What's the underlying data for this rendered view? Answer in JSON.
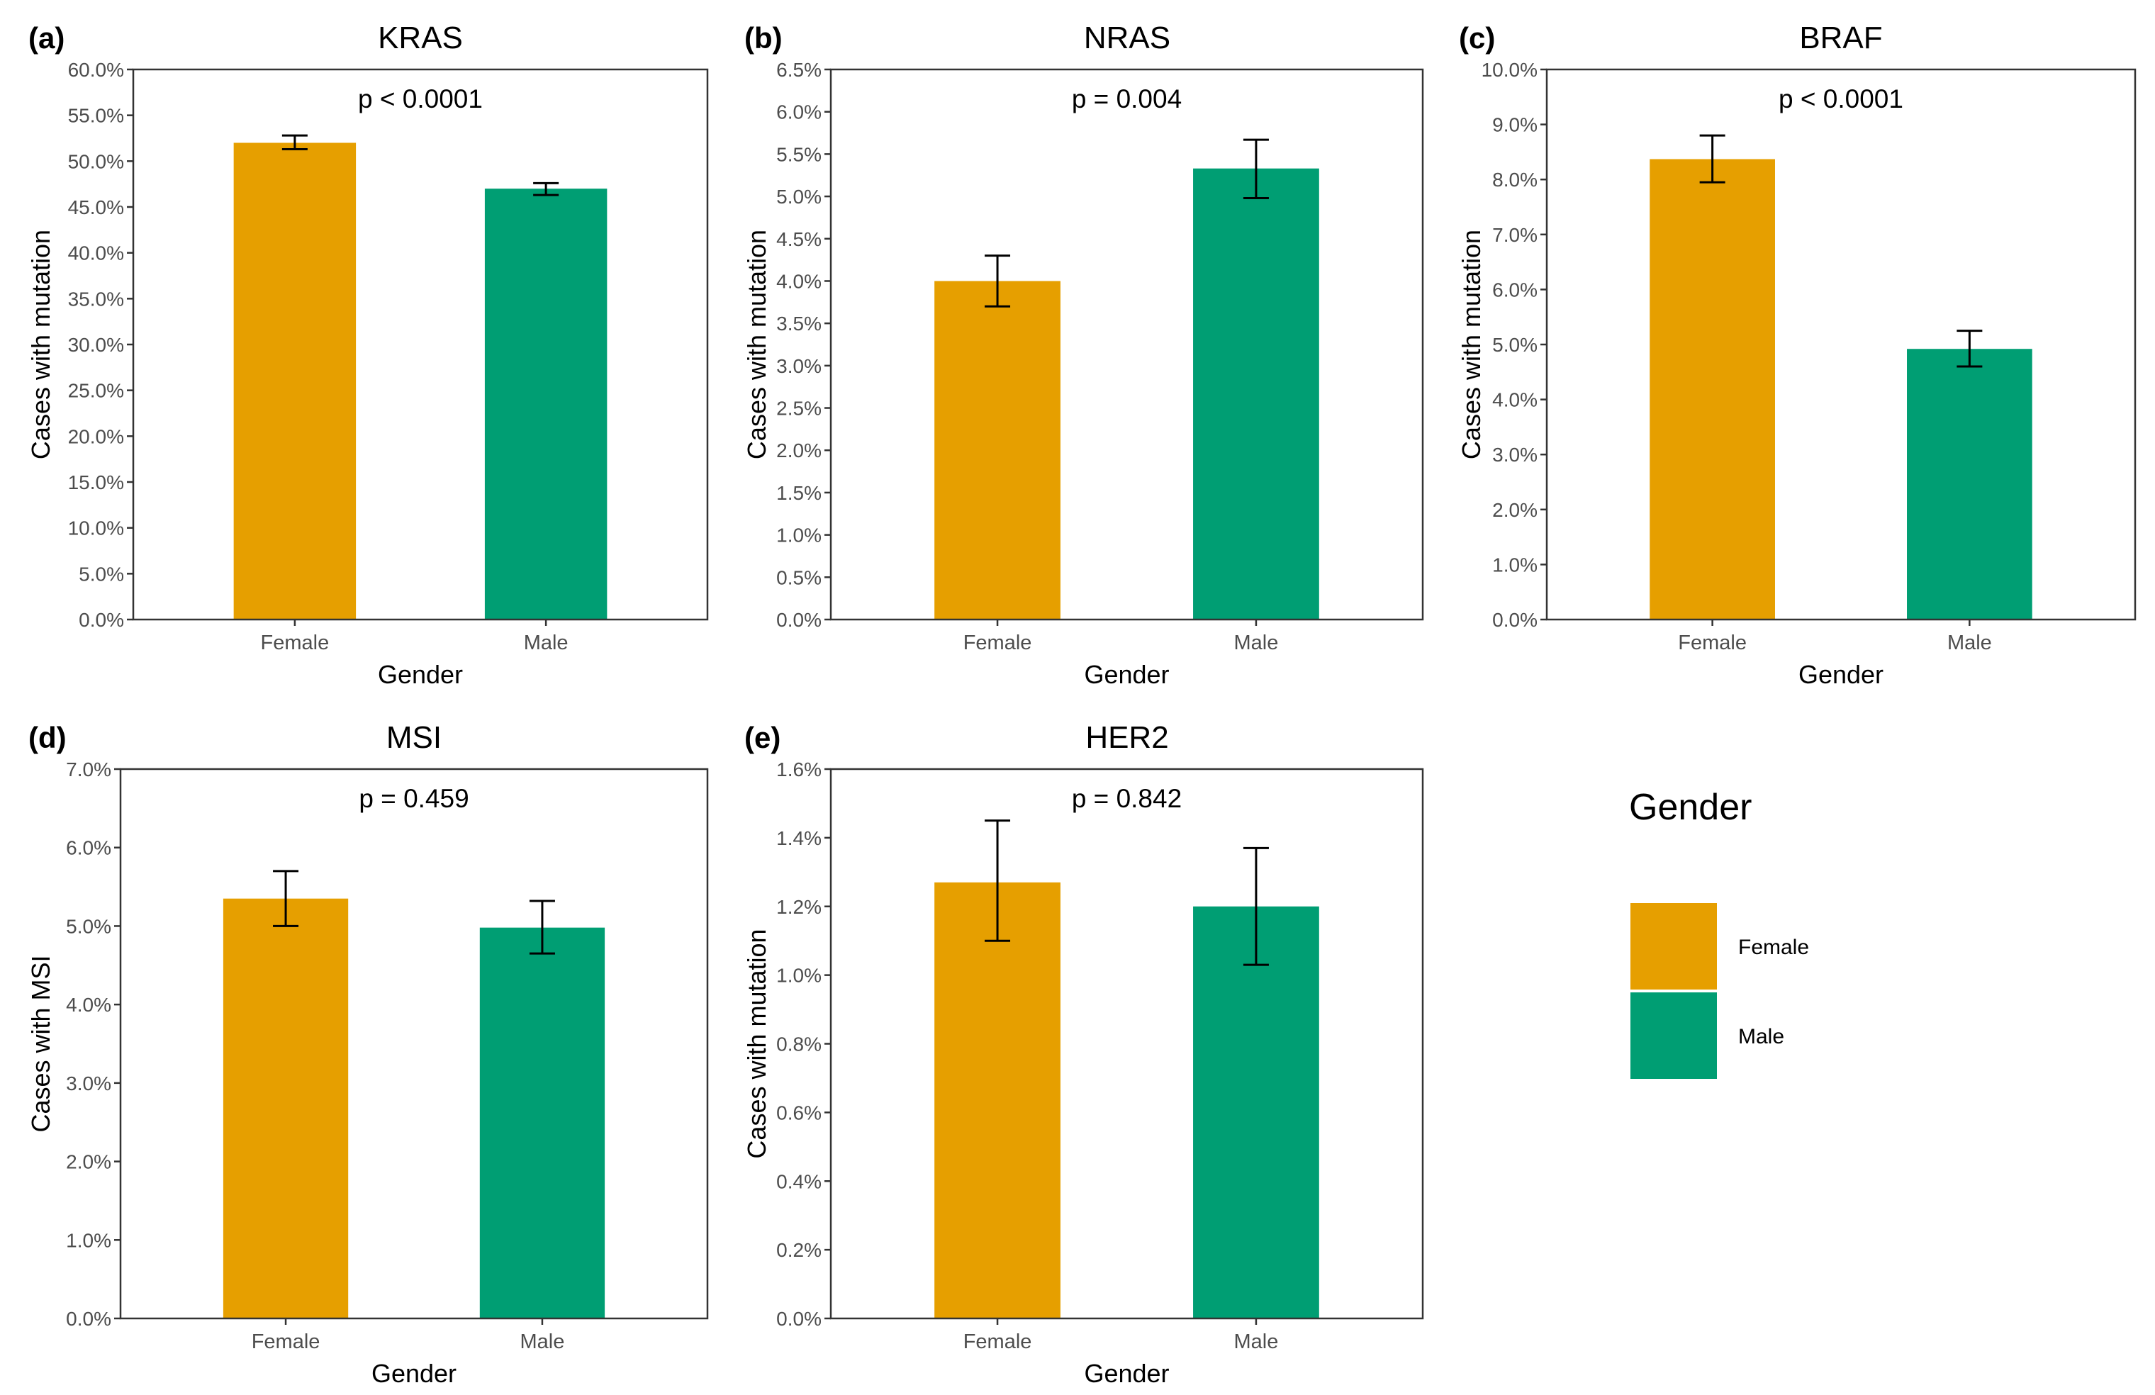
{
  "colors": {
    "female": "#E69F00",
    "male": "#009E73",
    "axis": "#333333",
    "errorbar": "#000000"
  },
  "legend": {
    "title": "Gender",
    "items": [
      {
        "label": "Female",
        "color": "#E69F00"
      },
      {
        "label": "Male",
        "color": "#009E73"
      }
    ]
  },
  "chart_data": [
    {
      "type": "bar",
      "letter": "(a)",
      "title": "KRAS",
      "pvalue": "p < 0.0001",
      "xlabel": "Gender",
      "ylabel": "Cases with mutation",
      "categories": [
        "Female",
        "Male"
      ],
      "values": [
        52.0,
        47.0
      ],
      "errors": [
        [
          51.3,
          52.8
        ],
        [
          46.3,
          47.6
        ]
      ],
      "ylim": [
        0,
        60
      ],
      "yticks": [
        0,
        5,
        10,
        15,
        20,
        25,
        30,
        35,
        40,
        45,
        50,
        55,
        60
      ],
      "decimals": 1
    },
    {
      "type": "bar",
      "letter": "(b)",
      "title": "NRAS",
      "pvalue": "p = 0.004",
      "xlabel": "Gender",
      "ylabel": "Cases with mutation",
      "categories": [
        "Female",
        "Male"
      ],
      "values": [
        4.0,
        5.33
      ],
      "errors": [
        [
          3.7,
          4.3
        ],
        [
          4.98,
          5.67
        ]
      ],
      "ylim": [
        0,
        6.5
      ],
      "yticks": [
        0,
        0.5,
        1,
        1.5,
        2,
        2.5,
        3,
        3.5,
        4,
        4.5,
        5,
        5.5,
        6,
        6.5
      ],
      "decimals": 1
    },
    {
      "type": "bar",
      "letter": "(c)",
      "title": "BRAF",
      "pvalue": "p < 0.0001",
      "xlabel": "Gender",
      "ylabel": "Cases with mutation",
      "categories": [
        "Female",
        "Male"
      ],
      "values": [
        8.37,
        4.92
      ],
      "errors": [
        [
          7.95,
          8.8
        ],
        [
          4.6,
          5.25
        ]
      ],
      "ylim": [
        0,
        10
      ],
      "yticks": [
        0,
        1,
        2,
        3,
        4,
        5,
        6,
        7,
        8,
        9,
        10
      ],
      "decimals": 1
    },
    {
      "type": "bar",
      "letter": "(d)",
      "title": "MSI",
      "pvalue": "p = 0.459",
      "xlabel": "Gender",
      "ylabel": "Cases with MSI",
      "categories": [
        "Female",
        "Male"
      ],
      "values": [
        5.35,
        4.98
      ],
      "errors": [
        [
          5.0,
          5.7
        ],
        [
          4.65,
          5.32
        ]
      ],
      "ylim": [
        0,
        7
      ],
      "yticks": [
        0,
        1,
        2,
        3,
        4,
        5,
        6,
        7
      ],
      "decimals": 1
    },
    {
      "type": "bar",
      "letter": "(e)",
      "title": "HER2",
      "pvalue": "p = 0.842",
      "xlabel": "Gender",
      "ylabel": "Cases with mutation",
      "categories": [
        "Female",
        "Male"
      ],
      "values": [
        1.27,
        1.2
      ],
      "errors": [
        [
          1.1,
          1.45
        ],
        [
          1.03,
          1.37
        ]
      ],
      "ylim": [
        0,
        1.6
      ],
      "yticks": [
        0,
        0.2,
        0.4,
        0.6,
        0.8,
        1.0,
        1.2,
        1.4,
        1.6
      ],
      "decimals": 1
    }
  ]
}
